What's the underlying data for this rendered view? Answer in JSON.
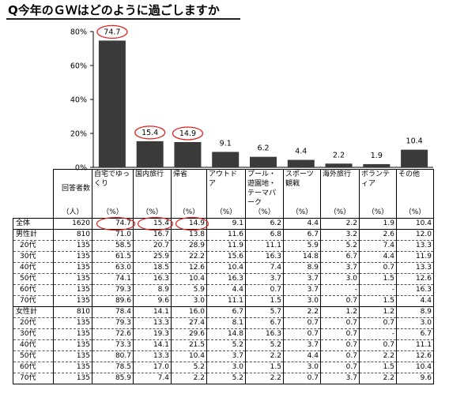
{
  "title": "Q今年のＧＷはどのように過ごしますか",
  "chart_data": {
    "type": "bar",
    "categories": [
      "自宅でゆっくり",
      "国内旅行",
      "帰省",
      "アウトドア",
      "プール・遊園地・テーマパーク",
      "スポーツ観戦",
      "海外旅行",
      "ボランティア",
      "その他"
    ],
    "values": [
      74.7,
      15.4,
      14.9,
      9.1,
      6.2,
      4.4,
      2.2,
      1.9,
      10.4
    ],
    "highlighted": [
      true,
      true,
      true,
      false,
      false,
      false,
      false,
      false,
      false
    ],
    "ylim": [
      0,
      80
    ],
    "yticks": [
      "0%",
      "20%",
      "40%",
      "60%",
      "80%"
    ],
    "bar_color": "#3a3a3a",
    "highlight_color": "#e02020"
  },
  "table": {
    "headers": [
      "自宅でゆっくり",
      "国内旅行",
      "帰省",
      "アウトドア",
      "プール・遊園地・テーマパーク",
      "スポーツ観戦",
      "海外旅行",
      "ボランティア",
      "その他"
    ],
    "count_header": "回答者数",
    "count_unit": "（人）",
    "pct_unit": "（%）",
    "rows": [
      {
        "label": "全体",
        "n": "1620",
        "v": [
          "74.7",
          "15.4",
          "14.9",
          "9.1",
          "6.2",
          "4.4",
          "2.2",
          "1.9",
          "10.4"
        ]
      },
      {
        "label": "男性計",
        "n": "810",
        "v": [
          "71.0",
          "16.7",
          "13.8",
          "11.6",
          "6.8",
          "6.7",
          "3.2",
          "2.6",
          "12.0"
        ]
      },
      {
        "label": "20代",
        "n": "135",
        "v": [
          "58.5",
          "20.7",
          "28.9",
          "11.9",
          "11.1",
          "5.9",
          "5.2",
          "7.4",
          "13.3"
        ]
      },
      {
        "label": "30代",
        "n": "135",
        "v": [
          "61.5",
          "25.9",
          "22.2",
          "15.6",
          "16.3",
          "14.8",
          "6.7",
          "4.4",
          "11.9"
        ]
      },
      {
        "label": "40代",
        "n": "135",
        "v": [
          "63.0",
          "18.5",
          "12.6",
          "10.4",
          "7.4",
          "8.9",
          "3.7",
          "0.7",
          "13.3"
        ]
      },
      {
        "label": "50代",
        "n": "135",
        "v": [
          "74.1",
          "16.3",
          "10.4",
          "16.3",
          "3.7",
          "3.7",
          "3.0",
          "1.5",
          "12.6"
        ]
      },
      {
        "label": "60代",
        "n": "135",
        "v": [
          "79.3",
          "8.9",
          "5.9",
          "4.4",
          "0.7",
          "3.7",
          "-",
          "-",
          "16.3"
        ]
      },
      {
        "label": "70代",
        "n": "135",
        "v": [
          "89.6",
          "9.6",
          "3.0",
          "11.1",
          "1.5",
          "3.0",
          "0.7",
          "1.5",
          "4.4"
        ]
      },
      {
        "label": "女性計",
        "n": "810",
        "v": [
          "78.4",
          "14.1",
          "16.0",
          "6.7",
          "5.7",
          "2.2",
          "1.2",
          "1.2",
          "8.9"
        ]
      },
      {
        "label": "20代",
        "n": "135",
        "v": [
          "79.3",
          "13.3",
          "27.4",
          "8.1",
          "6.7",
          "0.7",
          "0.7",
          "0.7",
          "3.0"
        ]
      },
      {
        "label": "30代",
        "n": "135",
        "v": [
          "72.6",
          "19.3",
          "29.6",
          "14.8",
          "16.3",
          "0.7",
          "0.7",
          "-",
          "6.7"
        ]
      },
      {
        "label": "40代",
        "n": "135",
        "v": [
          "73.3",
          "14.1",
          "21.5",
          "5.2",
          "5.2",
          "3.7",
          "0.7",
          "0.7",
          "11.1"
        ]
      },
      {
        "label": "50代",
        "n": "135",
        "v": [
          "80.7",
          "13.3",
          "10.4",
          "3.7",
          "2.2",
          "4.4",
          "0.7",
          "2.2",
          "12.6"
        ]
      },
      {
        "label": "60代",
        "n": "135",
        "v": [
          "78.5",
          "17.0",
          "5.2",
          "3.0",
          "1.5",
          "3.0",
          "0.7",
          "1.5",
          "10.4"
        ]
      },
      {
        "label": "70代",
        "n": "135",
        "v": [
          "85.9",
          "7.4",
          "2.2",
          "5.2",
          "2.2",
          "0.7",
          "3.7",
          "2.2",
          "9.6"
        ]
      }
    ]
  }
}
